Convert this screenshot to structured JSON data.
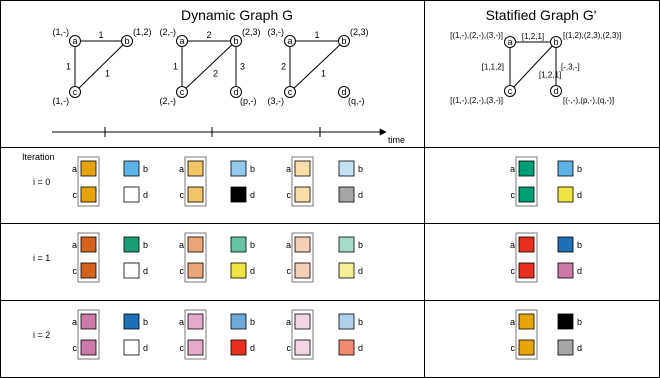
{
  "headers": {
    "left": "Dynamic Graph G",
    "right": "Statified Graph G'"
  },
  "time_label": "time",
  "iteration_label": "Iteration",
  "snapshots": [
    {
      "nodes": [
        {
          "id": "a",
          "label": "(1,-)"
        },
        {
          "id": "b",
          "label": "(1,2)"
        },
        {
          "id": "c",
          "label": "(1,-)"
        }
      ],
      "edges": [
        {
          "from": "a",
          "to": "b",
          "label": "1"
        },
        {
          "from": "a",
          "to": "c",
          "label": "1"
        },
        {
          "from": "b",
          "to": "c",
          "label": "1"
        }
      ]
    },
    {
      "nodes": [
        {
          "id": "a",
          "label": "(2,-)"
        },
        {
          "id": "b",
          "label": "(2,3)"
        },
        {
          "id": "c",
          "label": "(2,-)"
        },
        {
          "id": "d",
          "label": "(p,-)"
        }
      ],
      "edges": [
        {
          "from": "a",
          "to": "b",
          "label": "2"
        },
        {
          "from": "a",
          "to": "c",
          "label": "1"
        },
        {
          "from": "b",
          "to": "c",
          "label": "2"
        },
        {
          "from": "b",
          "to": "d",
          "label": "3"
        }
      ]
    },
    {
      "nodes": [
        {
          "id": "a",
          "label": "(3,-)"
        },
        {
          "id": "b",
          "label": "(2,3)"
        },
        {
          "id": "c",
          "label": "(3,-)"
        },
        {
          "id": "d",
          "label": "(q,-)"
        }
      ],
      "edges": [
        {
          "from": "a",
          "to": "b",
          "label": "1"
        },
        {
          "from": "a",
          "to": "c",
          "label": "2"
        },
        {
          "from": "b",
          "to": "c",
          "label": "1"
        }
      ]
    }
  ],
  "static_graph": {
    "nodes": [
      {
        "id": "a",
        "label": "[(1,-),(2,-),(3,-)]"
      },
      {
        "id": "b",
        "label": "[(1,2),(2,3),(2,3)]"
      },
      {
        "id": "c",
        "label": "[(1,-),(2,-),(3,-)]"
      },
      {
        "id": "d",
        "label": "[(-,-),(p,-),(q,-)]"
      }
    ],
    "edges": [
      {
        "from": "a",
        "to": "b",
        "label": "[1,2,1]"
      },
      {
        "from": "a",
        "to": "c",
        "label": "[1,1,2]"
      },
      {
        "from": "b",
        "to": "c",
        "label": "[1,2,1]"
      },
      {
        "from": "b",
        "to": "d",
        "label": "[-,3,-]"
      }
    ]
  },
  "node_letters": [
    "a",
    "b",
    "c",
    "d"
  ],
  "iterations": [
    {
      "label": "i = 0",
      "snapshots": [
        {
          "a": "#e8a30c",
          "b": "#5eb3e6",
          "c": "#e8a30c",
          "d": "#ffffff"
        },
        {
          "a": "#f2c56a",
          "b": "#92c9ec",
          "c": "#f2c56a",
          "d": "#000000"
        },
        {
          "a": "#f8dea8",
          "b": "#c4e1f4",
          "c": "#f8dea8",
          "d": "#a6a6a6"
        }
      ],
      "static": {
        "a": "#009e73",
        "b": "#5eb3e6",
        "c": "#009e73",
        "d": "#f0e442"
      }
    },
    {
      "label": "i = 1",
      "snapshots": [
        {
          "a": "#d3621c",
          "b": "#1b9e77",
          "c": "#d3621c",
          "d": "#ffffff"
        },
        {
          "a": "#eaa67a",
          "b": "#66c2a5",
          "c": "#eaa67a",
          "d": "#f0e442"
        },
        {
          "a": "#f5cfb7",
          "b": "#a6dbc8",
          "c": "#f5cfb7",
          "d": "#f5ef9a"
        }
      ],
      "static": {
        "a": "#e8301e",
        "b": "#1f6fb4",
        "c": "#e8301e",
        "d": "#cc79a7"
      }
    },
    {
      "label": "i = 2",
      "snapshots": [
        {
          "a": "#cc79a7",
          "b": "#1f6fb4",
          "c": "#cc79a7",
          "d": "#ffffff"
        },
        {
          "a": "#e3abcb",
          "b": "#6fa9d8",
          "c": "#e3abcb",
          "d": "#e8301e"
        },
        {
          "a": "#f1d5e5",
          "b": "#b0d1ec",
          "c": "#f1d5e5",
          "d": "#f08a70"
        }
      ],
      "static": {
        "a": "#e8a30c",
        "b": "#000000",
        "c": "#e8a30c",
        "d": "#a6a6a6"
      }
    }
  ]
}
